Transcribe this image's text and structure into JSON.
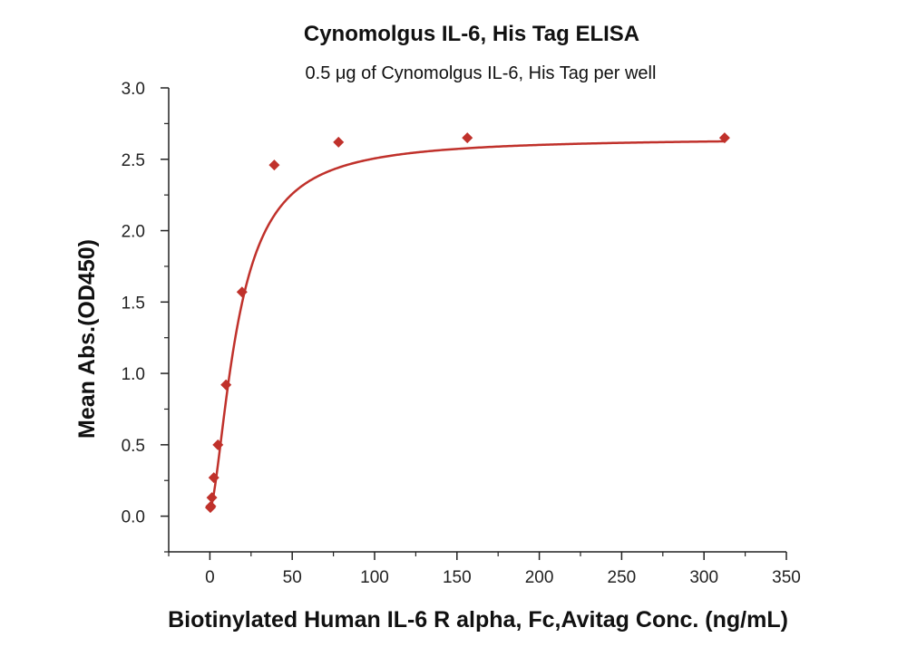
{
  "chart_data": {
    "type": "scatter",
    "title": "Cynomolgus IL-6, His Tag ELISA",
    "subtitle": "0.5 μg of Cynomolgus IL-6, His Tag per well",
    "xlabel": "Biotinylated Human IL-6 R alpha, Fc,Avitag Conc. (ng/mL)",
    "ylabel": "Mean Abs.(OD450)",
    "xlim": [
      -25,
      350
    ],
    "ylim": [
      -0.25,
      3.0
    ],
    "xticks": [
      0,
      50,
      100,
      150,
      200,
      250,
      300,
      350
    ],
    "xtick_labels": [
      "0",
      "50",
      "100",
      "150",
      "200",
      "250",
      "300",
      "350"
    ],
    "yticks": [
      0.0,
      0.5,
      1.0,
      1.5,
      2.0,
      2.5,
      3.0
    ],
    "ytick_labels": [
      "0.0",
      "0.5",
      "1.0",
      "1.5",
      "2.0",
      "2.5",
      "3.0"
    ],
    "grid": false,
    "series": [
      {
        "color": "#c0312b",
        "marker": "diamond",
        "fit": "4PL",
        "x": [
          0.3,
          0.6,
          1.2,
          2.4,
          4.9,
          9.8,
          19.5,
          39.1,
          78.1,
          156.3,
          312.5
        ],
        "y": [
          0.06,
          0.07,
          0.13,
          0.27,
          0.5,
          0.92,
          1.57,
          2.46,
          2.62,
          2.65,
          2.65
        ]
      }
    ]
  }
}
